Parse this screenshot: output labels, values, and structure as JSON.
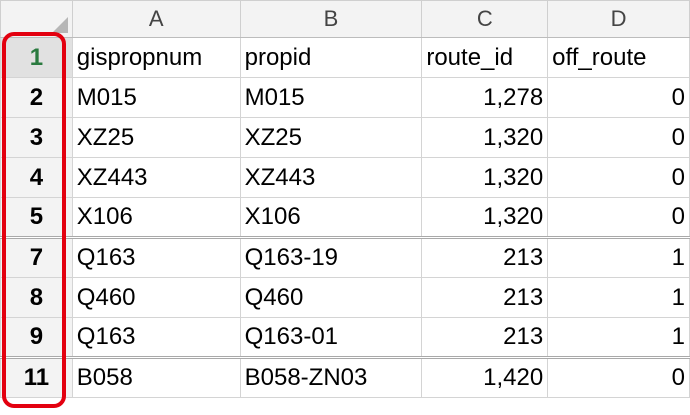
{
  "columns": [
    "A",
    "B",
    "C",
    "D"
  ],
  "rows": [
    {
      "num": "1",
      "a": "gispropnum",
      "b": "propid",
      "c": "route_id",
      "d": "off_route"
    },
    {
      "num": "2",
      "a": "M015",
      "b": "M015",
      "c": "1,278",
      "d": "0"
    },
    {
      "num": "3",
      "a": "XZ25",
      "b": "XZ25",
      "c": "1,320",
      "d": "0"
    },
    {
      "num": "4",
      "a": "XZ443",
      "b": "XZ443",
      "c": "1,320",
      "d": "0"
    },
    {
      "num": "5",
      "a": "X106",
      "b": "X106",
      "c": "1,320",
      "d": "0"
    },
    {
      "num": "7",
      "a": "Q163",
      "b": "Q163-19",
      "c": "213",
      "d": "1"
    },
    {
      "num": "8",
      "a": "Q460",
      "b": "Q460",
      "c": "213",
      "d": "1"
    },
    {
      "num": "9",
      "a": "Q163",
      "b": "Q163-01",
      "c": "213",
      "d": "1"
    },
    {
      "num": "11",
      "a": "B058",
      "b": "B058-ZN03",
      "c": "1,420",
      "d": "0"
    }
  ],
  "colors": {
    "highlight": "#e3000f",
    "row_number": "#1f3fd4",
    "selected_row_number": "#2a7a3f"
  }
}
